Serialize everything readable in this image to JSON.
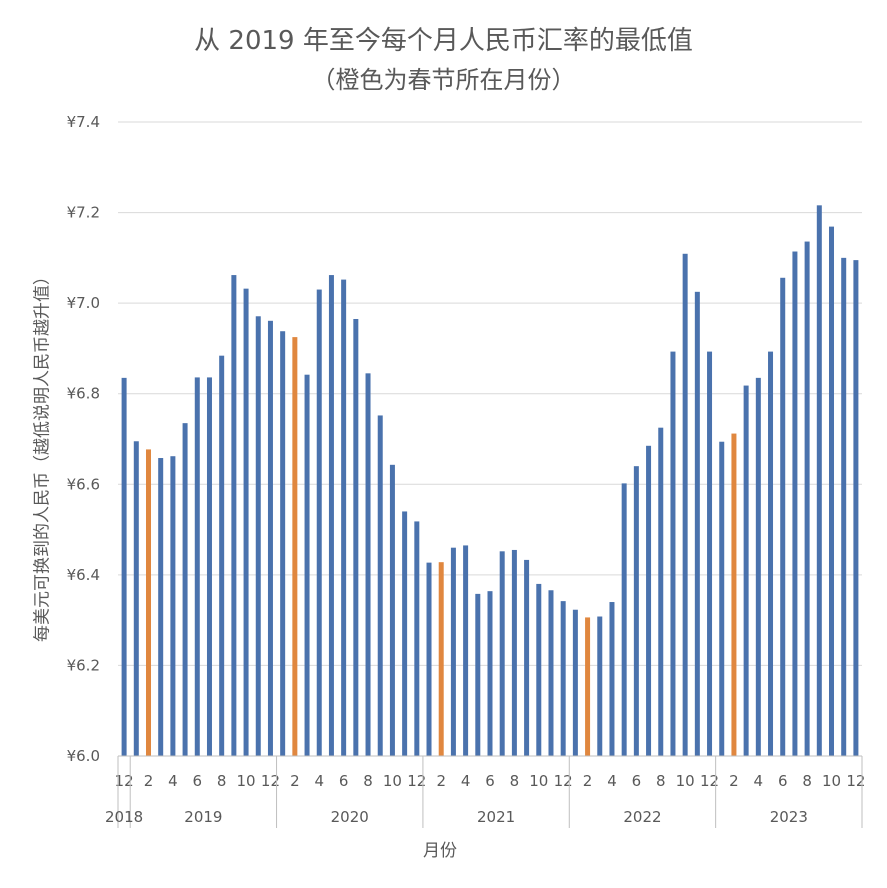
{
  "chart_data": {
    "type": "bar",
    "title": "从 2019 年至今每个月人民币汇率的最低值",
    "subtitle": "（橙色为春节所在月份）",
    "ylabel": "每美元可换到的人民币（越低说明人民币越升值）",
    "xlabel": "月份",
    "ylim": [
      6.0,
      7.4
    ],
    "yticks": [
      "¥6.0",
      "¥6.2",
      "¥6.4",
      "¥6.6",
      "¥6.8",
      "¥7.0",
      "¥7.2",
      "¥7.4"
    ],
    "grid": true,
    "months": [
      12,
      1,
      2,
      3,
      4,
      5,
      6,
      7,
      8,
      9,
      10,
      11,
      12,
      1,
      2,
      3,
      4,
      5,
      6,
      7,
      8,
      9,
      10,
      11,
      12,
      1,
      2,
      3,
      4,
      5,
      6,
      7,
      8,
      9,
      10,
      11,
      12,
      1,
      2,
      3,
      4,
      5,
      6,
      7,
      8,
      9,
      10,
      11,
      12,
      1,
      2,
      3,
      4,
      5,
      6,
      7,
      8,
      9,
      10,
      11,
      12
    ],
    "month_tick_labels": [
      "12",
      "2",
      "4",
      "6",
      "8",
      "10",
      "12",
      "2",
      "4",
      "6",
      "8",
      "10",
      "12",
      "2",
      "4",
      "6",
      "8",
      "10",
      "12",
      "2",
      "4",
      "6",
      "8",
      "10",
      "12",
      "2",
      "4",
      "6",
      "8",
      "10",
      "12"
    ],
    "years": [
      {
        "label": "2018",
        "start": 0,
        "end": 0
      },
      {
        "label": "2019",
        "start": 1,
        "end": 12
      },
      {
        "label": "2020",
        "start": 13,
        "end": 24
      },
      {
        "label": "2021",
        "start": 25,
        "end": 36
      },
      {
        "label": "2022",
        "start": 37,
        "end": 48
      },
      {
        "label": "2023",
        "start": 49,
        "end": 60
      }
    ],
    "values": [
      6.835,
      6.695,
      6.677,
      6.658,
      6.662,
      6.735,
      6.836,
      6.836,
      6.884,
      7.062,
      7.032,
      6.971,
      6.961,
      6.938,
      6.925,
      6.842,
      7.03,
      7.062,
      7.052,
      6.965,
      6.845,
      6.752,
      6.643,
      6.54,
      6.518,
      6.427,
      6.428,
      6.46,
      6.465,
      6.358,
      6.364,
      6.452,
      6.455,
      6.433,
      6.38,
      6.366,
      6.342,
      6.323,
      6.306,
      6.308,
      6.34,
      6.602,
      6.64,
      6.685,
      6.725,
      6.893,
      7.109,
      7.025,
      6.893,
      6.694,
      6.712,
      6.818,
      6.835,
      6.893,
      7.056,
      7.114,
      7.136,
      7.216,
      7.169,
      7.1,
      7.095
    ],
    "spring_festival_indices": [
      2,
      14,
      26,
      38,
      50
    ],
    "colors": {
      "bar": "#4a72ad",
      "spring_festival": "#e0873f",
      "grid": "#d9d9d9",
      "axis": "#bfbfbf",
      "text": "#595959"
    }
  }
}
